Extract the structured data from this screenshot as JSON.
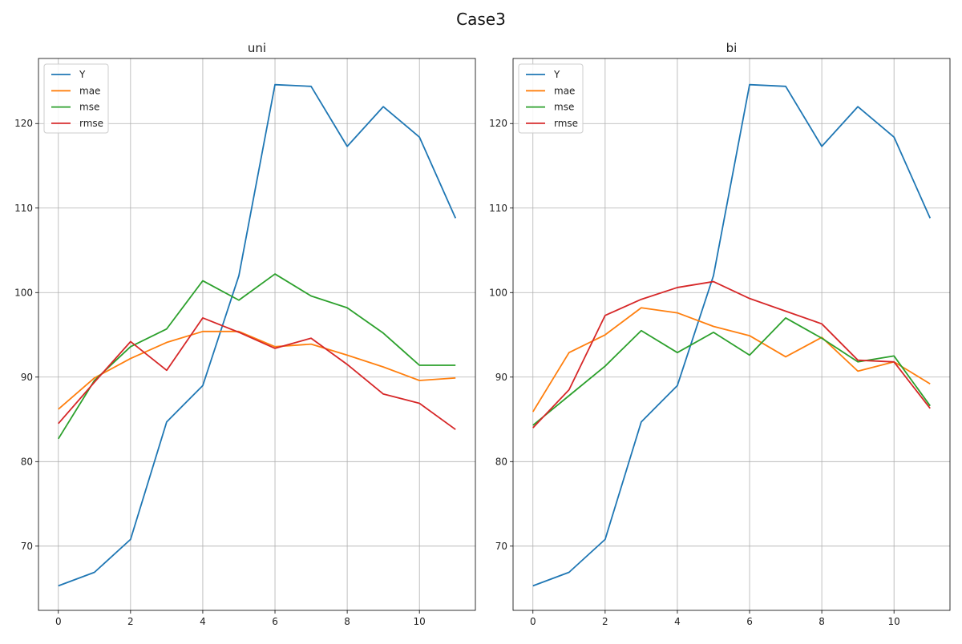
{
  "figure": {
    "title": "Case3"
  },
  "chart_data": [
    {
      "type": "line",
      "title": "uni",
      "xlabel": "",
      "ylabel": "",
      "xlim": [
        -0.55,
        11.55
      ],
      "ylim": [
        62.4,
        127.7
      ],
      "xticks": [
        0,
        2,
        4,
        6,
        8,
        10
      ],
      "yticks": [
        70,
        80,
        90,
        100,
        110,
        120
      ],
      "grid": true,
      "legend": "top-left",
      "x": [
        0,
        1,
        2,
        3,
        4,
        5,
        6,
        7,
        8,
        9,
        10,
        11
      ],
      "series": [
        {
          "name": "Y",
          "color": "#1f77b4",
          "values": [
            65.3,
            66.9,
            70.8,
            84.7,
            89.0,
            102.0,
            124.6,
            124.4,
            117.3,
            122.0,
            118.4,
            108.8
          ]
        },
        {
          "name": "mae",
          "color": "#ff7f0e",
          "values": [
            86.2,
            89.9,
            92.2,
            94.1,
            95.4,
            95.4,
            93.6,
            93.9,
            92.6,
            91.2,
            89.6,
            89.9
          ]
        },
        {
          "name": "mse",
          "color": "#2ca02c",
          "values": [
            82.7,
            89.6,
            93.6,
            95.7,
            101.4,
            99.1,
            102.2,
            99.6,
            98.2,
            95.2,
            91.4,
            91.4
          ]
        },
        {
          "name": "rmse",
          "color": "#d62728",
          "values": [
            84.5,
            89.4,
            94.2,
            90.8,
            97.0,
            95.3,
            93.4,
            94.6,
            91.5,
            88.0,
            86.9,
            83.8
          ]
        }
      ]
    },
    {
      "type": "line",
      "title": "bi",
      "xlabel": "",
      "ylabel": "",
      "xlim": [
        -0.55,
        11.55
      ],
      "ylim": [
        62.4,
        127.7
      ],
      "xticks": [
        0,
        2,
        4,
        6,
        8,
        10
      ],
      "yticks": [
        70,
        80,
        90,
        100,
        110,
        120
      ],
      "grid": true,
      "legend": "top-left",
      "x": [
        0,
        1,
        2,
        3,
        4,
        5,
        6,
        7,
        8,
        9,
        10,
        11
      ],
      "series": [
        {
          "name": "Y",
          "color": "#1f77b4",
          "values": [
            65.3,
            66.9,
            70.8,
            84.7,
            89.0,
            102.0,
            124.6,
            124.4,
            117.3,
            122.0,
            118.4,
            108.8
          ]
        },
        {
          "name": "mae",
          "color": "#ff7f0e",
          "values": [
            85.9,
            92.9,
            95.0,
            98.2,
            97.6,
            96.0,
            94.9,
            92.4,
            94.7,
            90.7,
            91.8,
            89.2
          ]
        },
        {
          "name": "mse",
          "color": "#2ca02c",
          "values": [
            84.3,
            87.8,
            91.3,
            95.5,
            92.9,
            95.3,
            92.6,
            97.0,
            94.6,
            91.8,
            92.5,
            86.6
          ]
        },
        {
          "name": "rmse",
          "color": "#d62728",
          "values": [
            84.0,
            88.5,
            97.3,
            99.2,
            100.6,
            101.3,
            99.3,
            97.8,
            96.3,
            92.0,
            91.8,
            86.3
          ]
        }
      ]
    }
  ]
}
